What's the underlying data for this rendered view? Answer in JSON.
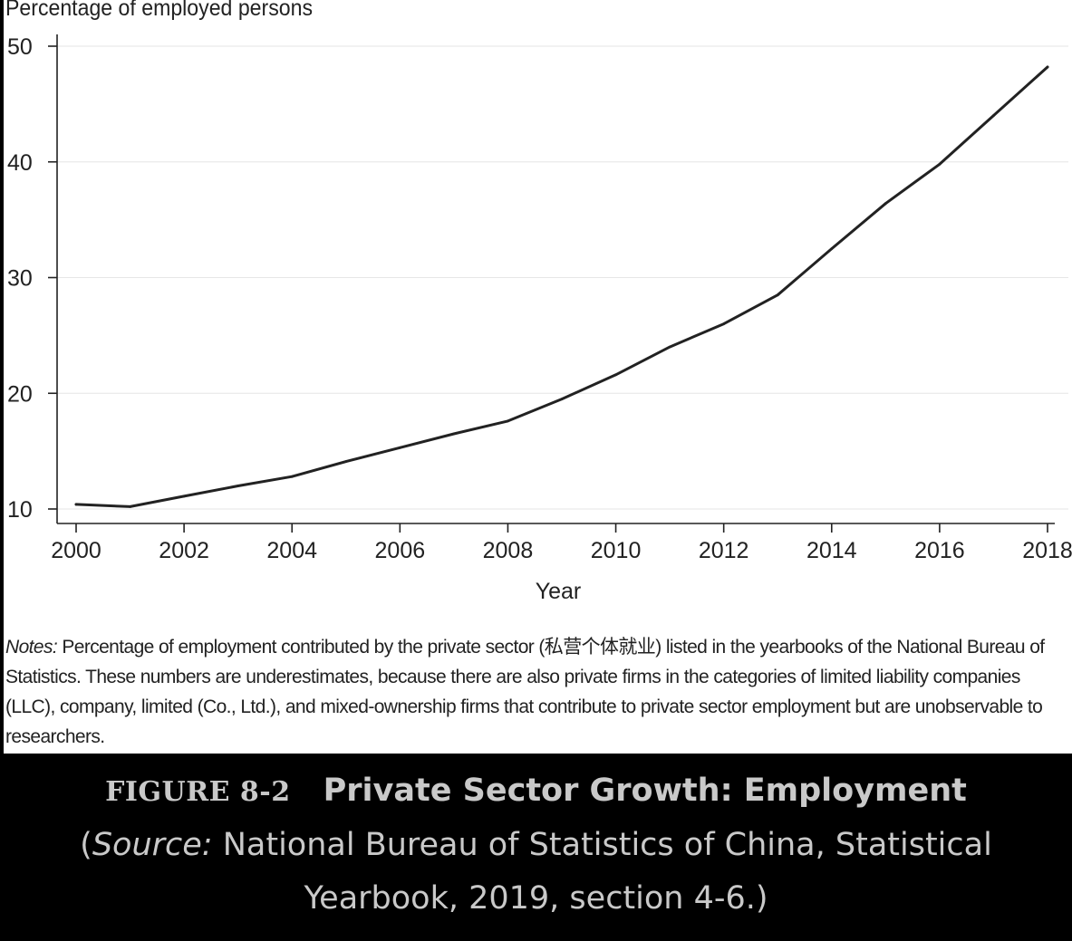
{
  "chart_data": {
    "type": "line",
    "ylabel": "Percentage of employed persons",
    "xlabel": "Year",
    "x": [
      2000,
      2001,
      2002,
      2003,
      2004,
      2005,
      2006,
      2007,
      2008,
      2009,
      2010,
      2011,
      2012,
      2013,
      2014,
      2015,
      2016,
      2017,
      2018
    ],
    "series": [
      {
        "values": [
          10.4,
          10.2,
          11.1,
          12.0,
          12.8,
          14.1,
          15.3,
          16.5,
          17.6,
          19.5,
          21.6,
          24.0,
          26.0,
          28.5,
          32.5,
          36.4,
          39.8,
          44.0,
          48.2
        ]
      }
    ],
    "xticks": [
      "2000",
      "2002",
      "2004",
      "2006",
      "2008",
      "2010",
      "2012",
      "2014",
      "2016",
      "2018"
    ],
    "yticks": [
      "10",
      "20",
      "30",
      "40",
      "50"
    ],
    "xlim": [
      2000,
      2018
    ],
    "ylim": [
      8.8,
      50
    ],
    "grid": "horizontal",
    "legend": "none",
    "line_color": "#222222"
  },
  "notes": {
    "label": "Notes:",
    "text": " Percentage of employment contributed by the private sector (私营个体就业) listed in the yearbooks of the National Bureau of Statistics. These numbers are underestimates, because there are also private firms in the categories of limited liability companies (LLC), company, limited (Co., Ltd.), and mixed-ownership firms that contribute to private sector employment but are unobservable to researchers."
  },
  "caption": {
    "figure_label": "FIGURE 8-2",
    "title": "Private Sector Growth: Employment",
    "source_open": "(",
    "source_label": "Source:",
    "source_text": " National Bureau of Statistics of China, Statistical",
    "source_text_2": "Yearbook, 2019, section 4-6.)"
  }
}
